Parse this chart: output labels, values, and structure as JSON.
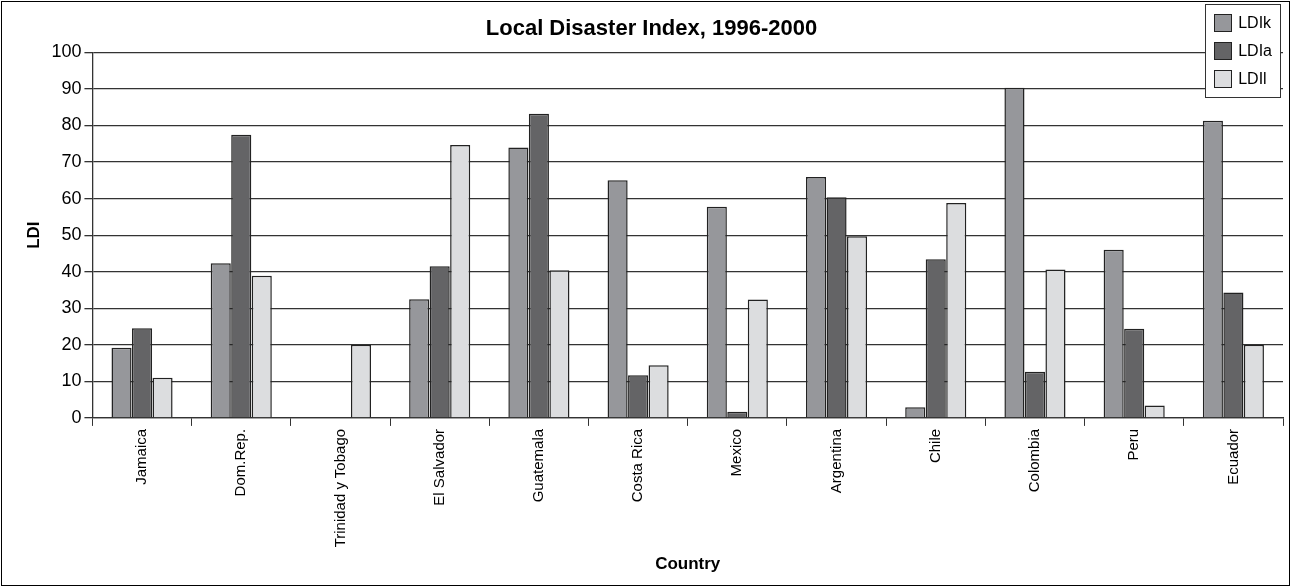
{
  "chart_data": {
    "type": "bar",
    "title": "Local Disaster Index, 1996-2000",
    "xlabel": "Country",
    "ylabel": "LDI",
    "categories": [
      "Jamaica",
      "Dom.Rep.",
      "Trinidad y Tobago",
      "El Salvador",
      "Guatemala",
      "Costa Rica",
      "Mexico",
      "Argentina",
      "Chile",
      "Colombia",
      "Peru",
      "Ecuador"
    ],
    "series": [
      {
        "name": "LDIk",
        "color": "#96979b",
        "values": [
          19.2,
          42.3,
          null,
          32.5,
          74,
          65,
          57.8,
          65.9,
          2.9,
          90.3,
          46,
          81.3
        ]
      },
      {
        "name": "LDIa",
        "color": "#646466",
        "values": [
          24.5,
          77.5,
          null,
          41.5,
          83.2,
          11.7,
          1.7,
          60.4,
          43.4,
          12.6,
          24.4,
          34.3
        ]
      },
      {
        "name": "LDIl",
        "color": "#dcdddf",
        "values": [
          11,
          38.9,
          20,
          74.7,
          40.4,
          14.4,
          32.4,
          49.7,
          58.8,
          40.6,
          3.4,
          20
        ]
      }
    ],
    "ylim": [
      0,
      100
    ],
    "yticks": [
      0,
      10,
      20,
      30,
      40,
      50,
      60,
      70,
      80,
      90,
      100
    ],
    "grid": "y",
    "legend": "top right"
  }
}
